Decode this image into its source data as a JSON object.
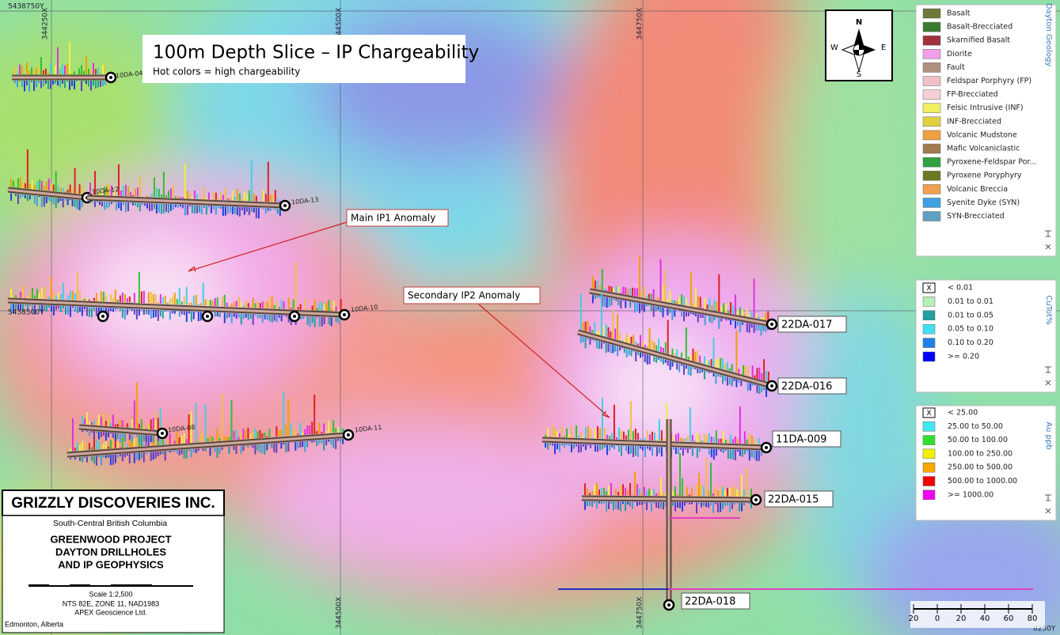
{
  "title": {
    "heading": "100m Depth Slice – IP Chargeability",
    "subheading": "Hot colors = high chargeability"
  },
  "grid_labels": [
    "5438750Y",
    "344250X",
    "344500X",
    "344750X",
    "5438500Y",
    "344500X",
    "344750X",
    "8250Y"
  ],
  "annotations": [
    "Main IP1 Anomaly",
    "Secondary IP2 Anomaly"
  ],
  "drillholes": [
    "22DA-017",
    "22DA-016",
    "11DA-009",
    "22DA-015",
    "22DA-018"
  ],
  "minor_drillholes": [
    "10DA-04",
    "10DA-12",
    "10DA-13",
    "10DA-10",
    "10DA-11",
    "10DA-08"
  ],
  "compass": {
    "n": "N",
    "e": "E",
    "s": "S",
    "w": "W"
  },
  "legends": {
    "geology": {
      "title": "Dayton Geology",
      "items": [
        {
          "label": "Basalt",
          "color": "#6b7a3a"
        },
        {
          "label": "Basalt-Brecciated",
          "color": "#3c7a30"
        },
        {
          "label": "Skarnified Basalt",
          "color": "#a03040"
        },
        {
          "label": "Diorite",
          "color": "#f0a0e8"
        },
        {
          "label": "Fault",
          "color": "#b09080"
        },
        {
          "label": "Feldspar Porphyry (FP)",
          "color": "#f0c0c8"
        },
        {
          "label": "FP-Brecciated",
          "color": "#f4d0d8"
        },
        {
          "label": "Felsic Intrusive (INF)",
          "color": "#f0f060"
        },
        {
          "label": "INF-Brecciated",
          "color": "#e0d040"
        },
        {
          "label": "Volcanic Mudstone",
          "color": "#f0a040"
        },
        {
          "label": "Mafic Volcaniclastic",
          "color": "#a07a50"
        },
        {
          "label": "Pyroxene-Feldspar Por...",
          "color": "#30a040"
        },
        {
          "label": "Pyroxene Poryphyry",
          "color": "#6a7a20"
        },
        {
          "label": "Volcanic Breccia",
          "color": "#f0a050"
        },
        {
          "label": "Syenite Dyke (SYN)",
          "color": "#40a0e0"
        },
        {
          "label": "SYN-Brecciated",
          "color": "#60a0c0"
        }
      ]
    },
    "cutot": {
      "title": "CuTot%",
      "items": [
        {
          "label": "< 0.01",
          "marker": "X"
        },
        {
          "label": "0.01 to 0.01",
          "color": "#b8f0b8"
        },
        {
          "label": "0.01 to 0.05",
          "color": "#20a0a0"
        },
        {
          "label": "0.05 to 0.10",
          "color": "#40e0f0"
        },
        {
          "label": "0.10 to 0.20",
          "color": "#2080e8"
        },
        {
          "label": ">= 0.20",
          "color": "#0000ff"
        }
      ]
    },
    "au": {
      "title": "Au ppb",
      "items": [
        {
          "label": "< 25.00",
          "marker": "X"
        },
        {
          "label": "25.00 to 50.00",
          "color": "#40e8f0"
        },
        {
          "label": "50.00 to 100.00",
          "color": "#30e030"
        },
        {
          "label": "100.00 to 250.00",
          "color": "#f0f000"
        },
        {
          "label": "250.00 to 500.00",
          "color": "#f8a800"
        },
        {
          "label": "500.00 to 1000.00",
          "color": "#f00000"
        },
        {
          "label": ">= 1000.00",
          "color": "#f000f0"
        }
      ]
    }
  },
  "title_block": {
    "company": "GRIZZLY DISCOVERIES INC.",
    "region": "South-Central British Columbia",
    "project_lines": [
      "GREENWOOD PROJECT",
      "DAYTON DRILLHOLES",
      "AND IP GEOPHYSICS"
    ],
    "scale": "Scale 1:2,500",
    "nts": "NTS 82E, ZONE 11, NAD1983",
    "firm": "APEX Geoscience Ltd.",
    "city": "Edmonton, Alberta"
  },
  "scale_bar": {
    "labels": [
      20,
      0,
      20,
      40,
      60,
      80
    ]
  }
}
